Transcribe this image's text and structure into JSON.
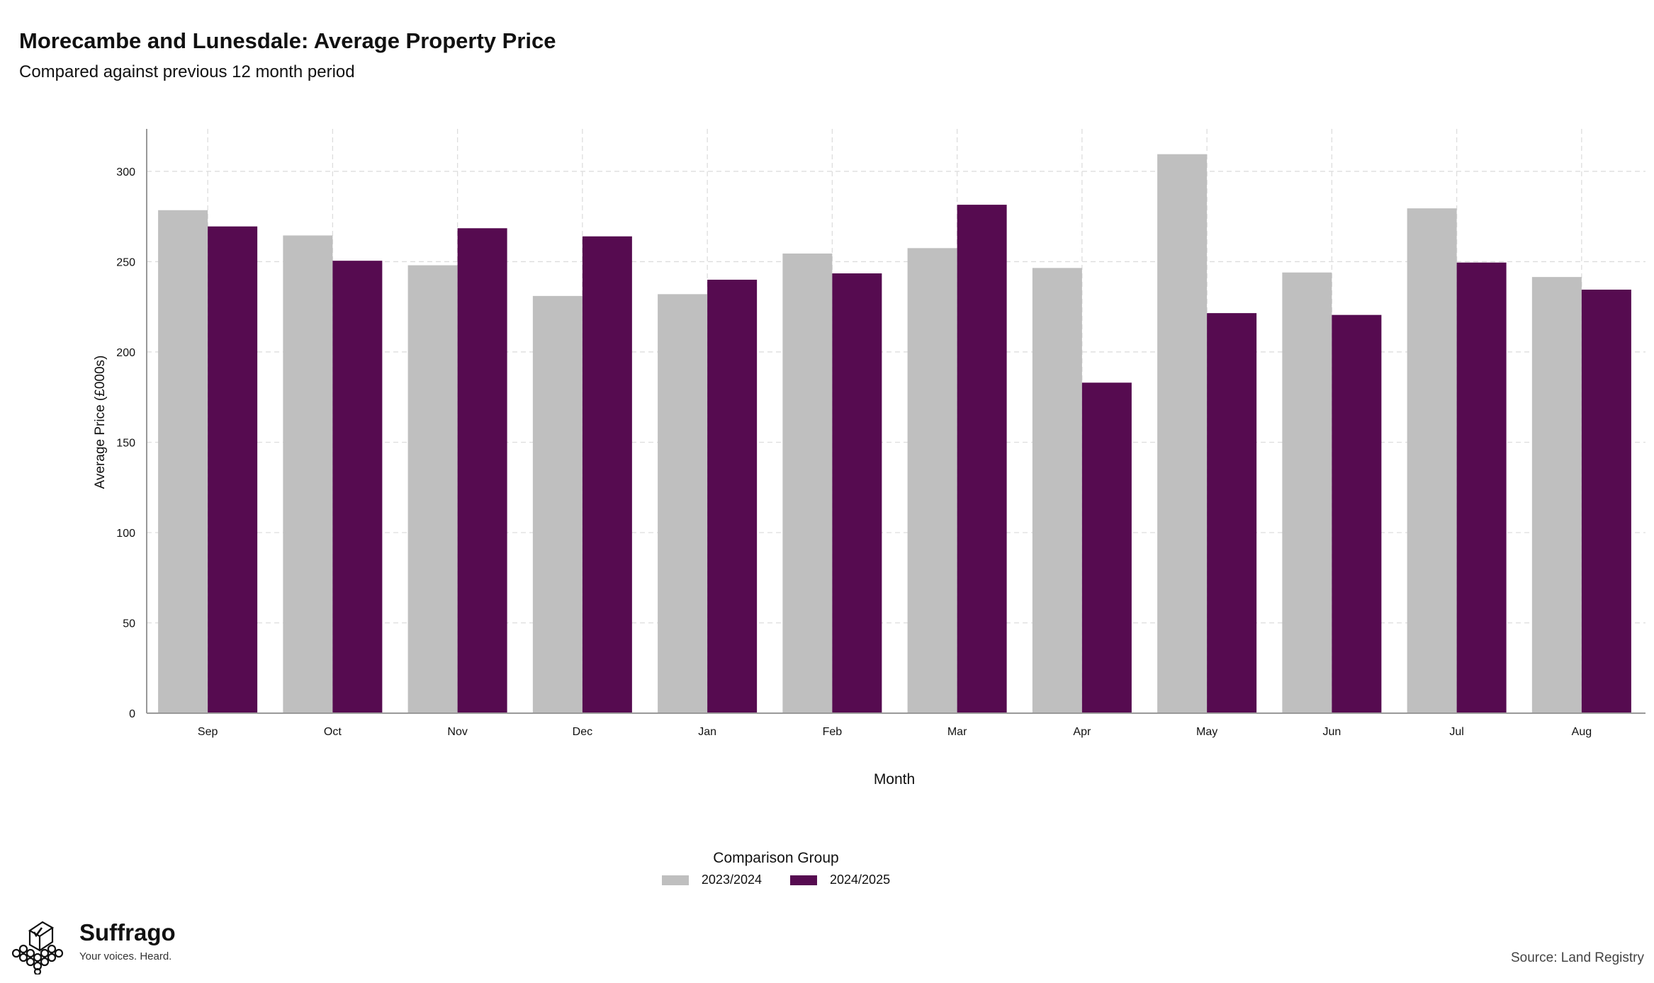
{
  "title": "Morecambe and Lunesdale: Average Property Price",
  "subtitle": "Compared against previous 12 month period",
  "legend": {
    "title": "Comparison Group",
    "items": [
      {
        "label": "2023/2024",
        "color": "#bfbfbf"
      },
      {
        "label": "2024/2025",
        "color": "#560b50"
      }
    ]
  },
  "brand": {
    "name": "Suffrago",
    "tagline": "Your voices. Heard."
  },
  "source": "Source: Land Registry",
  "chart_data": {
    "type": "bar",
    "xlabel": "Month",
    "ylabel": "Average Price (£000s)",
    "ylim": [
      0,
      325
    ],
    "yticks": [
      0,
      50,
      100,
      150,
      200,
      250,
      300
    ],
    "grid": true,
    "legend_position": "bottom",
    "categories": [
      "Sep",
      "Oct",
      "Nov",
      "Dec",
      "Jan",
      "Feb",
      "Mar",
      "Apr",
      "May",
      "Jun",
      "Jul",
      "Aug"
    ],
    "series": [
      {
        "name": "2023/2024",
        "color": "#bfbfbf",
        "values": [
          278.5,
          264.5,
          248,
          231,
          232,
          254.5,
          257.5,
          246.5,
          309.5,
          244,
          279.5,
          241.5
        ]
      },
      {
        "name": "2024/2025",
        "color": "#560b50",
        "values": [
          269.5,
          250.5,
          268.5,
          264,
          240,
          243.5,
          281.5,
          183,
          221.5,
          220.5,
          249.5,
          234.5
        ]
      }
    ]
  }
}
